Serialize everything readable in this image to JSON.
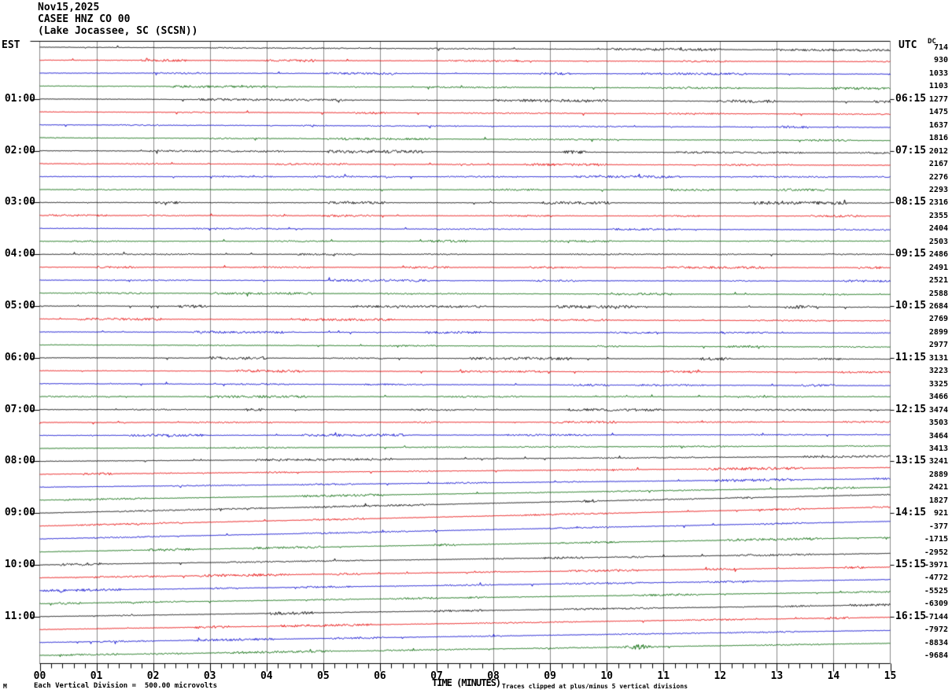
{
  "header": {
    "date": "Nov15,2025",
    "station": "CASEE HNZ CO 00",
    "location": "(Lake Jocassee, SC (SCSN))",
    "left_tz": "EST",
    "right_tz": "UTC",
    "dc_label": "DC"
  },
  "left_axis": {
    "hour_labels": [
      "01:00",
      "02:00",
      "03:00",
      "04:00",
      "05:00",
      "06:00",
      "07:00",
      "08:00",
      "09:00",
      "10:00",
      "11:00"
    ]
  },
  "right_axis": {
    "hour_labels": [
      "06:15",
      "07:15",
      "08:15",
      "09:15",
      "10:15",
      "11:15",
      "12:15",
      "13:15",
      "14:15",
      "15:15",
      "16:15"
    ]
  },
  "x_axis": {
    "title": "TIME (MINUTES)",
    "tick_labels": [
      "00",
      "01",
      "02",
      "03",
      "04",
      "05",
      "06",
      "07",
      "08",
      "09",
      "10",
      "11",
      "12",
      "13",
      "14",
      "15"
    ]
  },
  "footer": {
    "scale_note": "Each Vertical Division =  500.00 microvolts",
    "clip_note": "Traces clipped at plus/minus 5 vertical divisions",
    "corner_mark": "M"
  },
  "chart_data": {
    "type": "line",
    "subtype": "helicorder-webicorder",
    "title": "CASEE HNZ CO 00 (Lake Jocassee, SC (SCSN)) Nov15,2025",
    "xlabel": "TIME (MINUTES)",
    "x_range_minutes": [
      0,
      15
    ],
    "rows": 48,
    "minutes_per_row": 15,
    "first_row_start_est": "00:00",
    "row_color_cycle_by_quarter_hour": [
      "black",
      "red",
      "blue",
      "green"
    ],
    "microvolts_per_division": 500,
    "clip_divisions": 5,
    "grid": "vertical line each minute, 5 minor ticks per minute on bottom axis",
    "legend_position": "none",
    "dc_offsets_per_row": [
      714,
      930,
      1033,
      1103,
      1277,
      1475,
      1637,
      1816,
      2012,
      2167,
      2276,
      2293,
      2316,
      2355,
      2404,
      2503,
      2486,
      2491,
      2521,
      2588,
      2684,
      2769,
      2899,
      2977,
      3131,
      3223,
      3325,
      3466,
      3474,
      3503,
      3464,
      3413,
      3241,
      2889,
      2421,
      1827,
      921,
      -377,
      -1715,
      -2952,
      -3971,
      -4772,
      -5525,
      -6309,
      -7144,
      -7972,
      -8834,
      -9684
    ],
    "trace_character": "mostly flat ambient noise with intermittent fuzzy segments; rows after 08:00 EST drift upward to the right due to falling DC offset",
    "event_bursts": [
      {
        "row": 47,
        "start_min": 10.15,
        "end_min": 11.0,
        "amplitude_divisions": 0.2,
        "note": "small burst on last green trace"
      }
    ],
    "colors": {
      "trace_black": "#000000",
      "trace_red": "#e60000",
      "trace_blue": "#0000cc",
      "trace_green": "#006600",
      "grid": "#8a8a8a",
      "border": "#000000",
      "background": "#ffffff"
    }
  }
}
